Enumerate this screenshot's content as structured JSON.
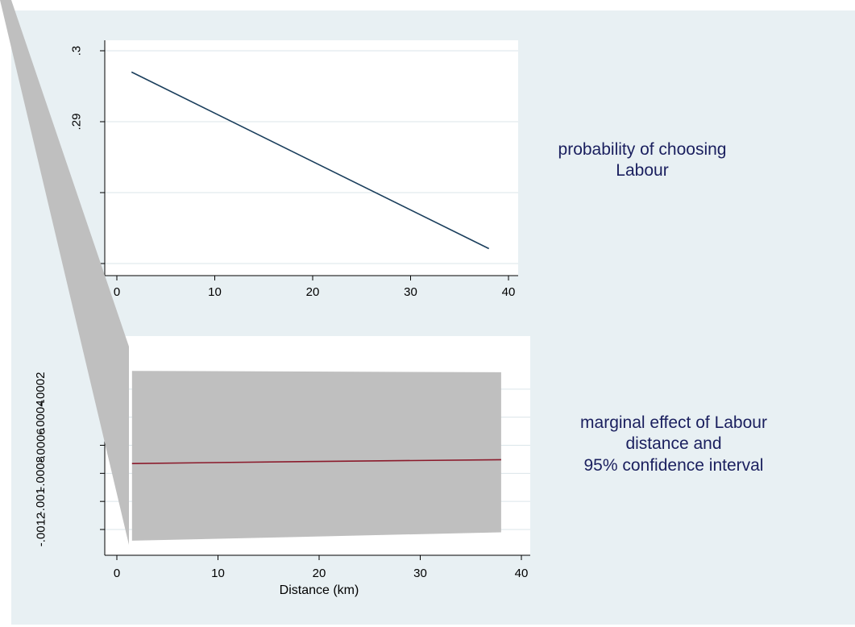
{
  "colors": {
    "outer_background": "#e8f0f3",
    "plot_background": "#ffffff",
    "grid": "#dbe5ea",
    "prob_line": "#1a3e5c",
    "effect_line": "#8b1a2b",
    "ci_band": "#bfbfbf",
    "title_text": "#1a1f5e"
  },
  "chart_data": [
    {
      "type": "line",
      "xlim": [
        0,
        40
      ],
      "ylim": [
        0.27,
        0.3
      ],
      "x_ticks": [
        0,
        10,
        20,
        30,
        40
      ],
      "y_ticks": [
        0.27,
        0.28,
        0.29,
        0.3
      ],
      "x_tick_labels": [
        "0",
        "10",
        "20",
        "30",
        "40"
      ],
      "y_tick_labels": [
        ".27",
        "",
        ".29",
        ".3"
      ],
      "grid": true,
      "title_lines": [
        "probability of choosing",
        "Labour"
      ],
      "xlabel": "",
      "ylabel": "",
      "series": [
        {
          "x": [
            1.5,
            38
          ],
          "y": [
            0.297,
            0.2721
          ]
        }
      ]
    },
    {
      "type": "area",
      "xlim": [
        0,
        40
      ],
      "ylim": [
        -0.0012,
        0
      ],
      "x_ticks": [
        0,
        10,
        20,
        30,
        40
      ],
      "y_ticks": [
        -0.0012,
        -0.001,
        -0.0008,
        -0.0006,
        -0.0004,
        -0.0002
      ],
      "x_tick_labels": [
        "0",
        "10",
        "20",
        "30",
        "40"
      ],
      "y_tick_labels": [
        "-.0012",
        "-.001",
        "-.0008",
        "-.0006",
        "-.0004",
        "-.0002"
      ],
      "grid": true,
      "title_lines": [
        "marginal effect of Labour",
        "distance and",
        "95% confidence interval"
      ],
      "xlabel": "Distance (km)",
      "ylabel": "",
      "series": [
        {
          "x": [
            1.5,
            20,
            38
          ],
          "y": [
            -0.00073,
            -0.000715,
            -0.000703
          ]
        }
      ],
      "band": {
        "x": [
          1.5,
          38
        ],
        "upper": [
          -7e-05,
          -8e-05
        ],
        "lower": [
          -0.00128,
          -0.00122
        ]
      }
    }
  ]
}
